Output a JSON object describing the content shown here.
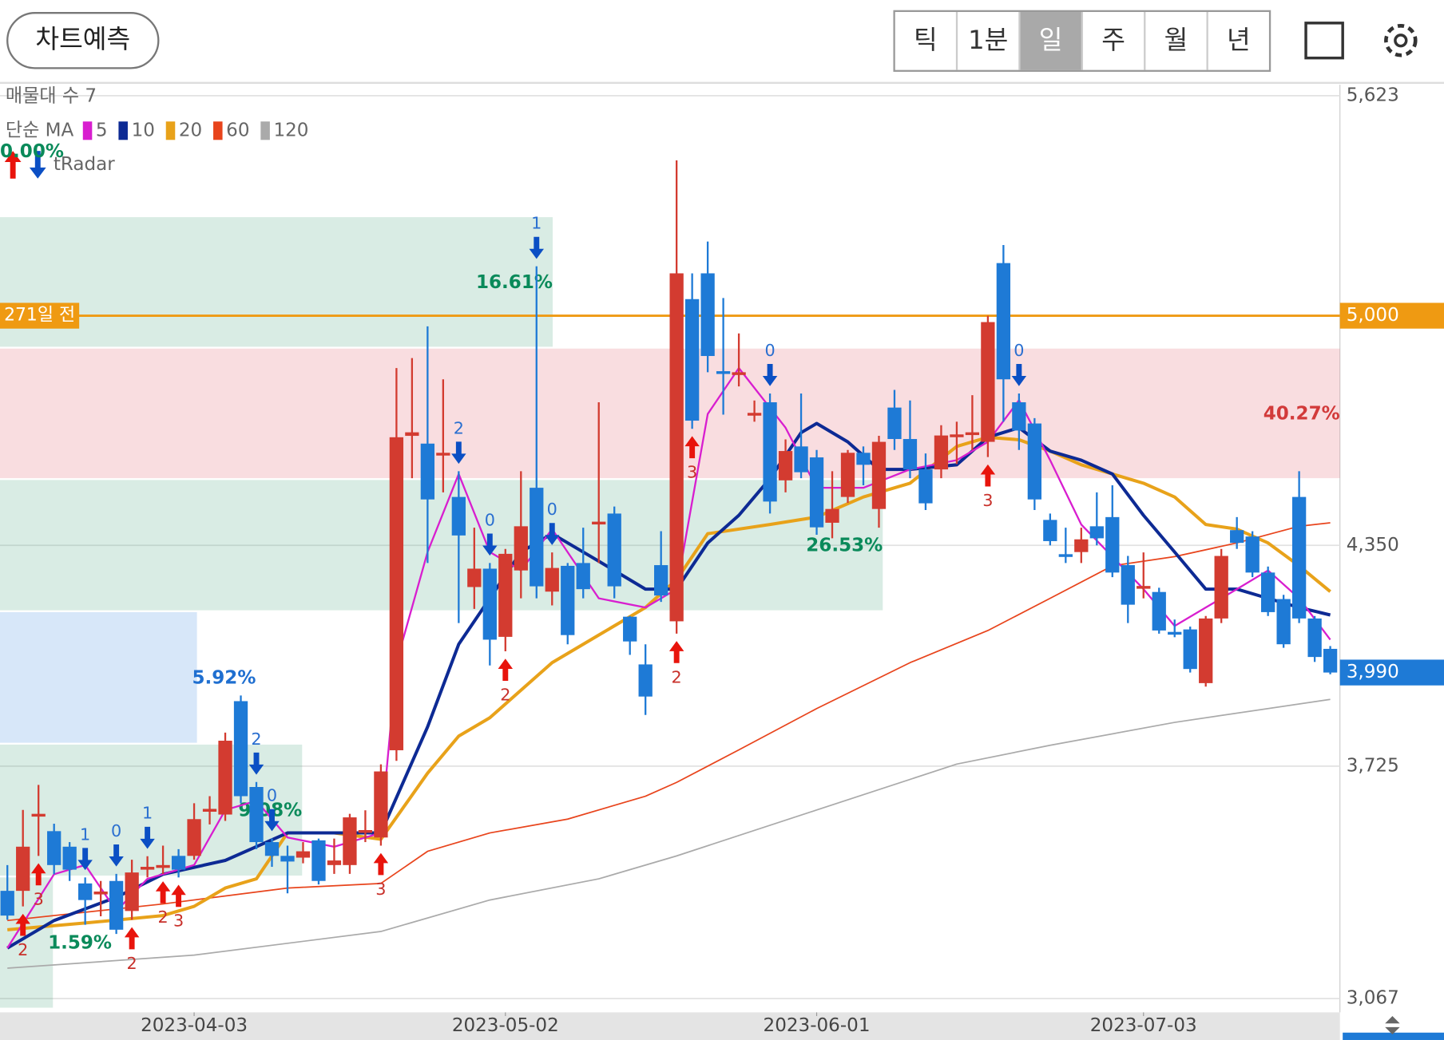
{
  "header": {
    "button": "차트예측",
    "periods": [
      "틱",
      "1분",
      "일",
      "주",
      "월",
      "년"
    ],
    "selected": 2
  },
  "chart_data": {
    "type": "candlestick",
    "profile_title": "매물대 수 7",
    "ma_title": "단순 MA",
    "indicator": {
      "name": "tRadar",
      "value": 0,
      "label": "0.00%"
    },
    "up_color": "#d33b30",
    "down_color": "#1e7ad6",
    "ylim": [
      3028,
      5654
    ],
    "yticks": [
      {
        "value": 5623,
        "label": "5,623"
      },
      {
        "value": 4350,
        "label": "4,350"
      },
      {
        "value": 3725,
        "label": "3,725"
      },
      {
        "value": 3067,
        "label": "3,067"
      }
    ],
    "grid": true,
    "categories": [
      null,
      null,
      null,
      null,
      null,
      null,
      null,
      null,
      null,
      null,
      null,
      null,
      "2023-04-03",
      null,
      null,
      null,
      null,
      null,
      null,
      null,
      null,
      null,
      null,
      null,
      null,
      null,
      null,
      null,
      null,
      null,
      null,
      null,
      "2023-05-02",
      null,
      null,
      null,
      null,
      null,
      null,
      null,
      null,
      null,
      null,
      null,
      null,
      null,
      null,
      null,
      null,
      null,
      null,
      null,
      "2023-06-01",
      null,
      null,
      null,
      null,
      null,
      null,
      null,
      null,
      null,
      null,
      null,
      null,
      null,
      null,
      null,
      null,
      null,
      null,
      null,
      null,
      "2023-07-03",
      null,
      null,
      null,
      null,
      null,
      null,
      null,
      null,
      null,
      null,
      null,
      null
    ],
    "candles": [
      [
        3372,
        3445,
        3290,
        3302
      ],
      [
        3372,
        3601,
        3328,
        3497
      ],
      [
        3585,
        3672,
        3471,
        3590
      ],
      [
        3541,
        3562,
        3419,
        3445
      ],
      [
        3497,
        3510,
        3400,
        3432
      ],
      [
        3393,
        3410,
        3276,
        3346
      ],
      [
        3362,
        3400,
        3300,
        3370
      ],
      [
        3400,
        3420,
        3250,
        3262
      ],
      [
        3315,
        3460,
        3290,
        3424
      ],
      [
        3432,
        3470,
        3410,
        3440
      ],
      [
        3437,
        3500,
        3420,
        3445
      ],
      [
        3471,
        3490,
        3410,
        3432
      ],
      [
        3471,
        3620,
        3460,
        3575
      ],
      [
        3596,
        3640,
        3560,
        3604
      ],
      [
        3588,
        3820,
        3570,
        3797
      ],
      [
        3909,
        3925,
        3620,
        3640
      ],
      [
        3666,
        3680,
        3490,
        3510
      ],
      [
        3510,
        3520,
        3440,
        3471
      ],
      [
        3471,
        3500,
        3365,
        3455
      ],
      [
        3466,
        3510,
        3450,
        3484
      ],
      [
        3515,
        3520,
        3390,
        3400
      ],
      [
        3445,
        3520,
        3420,
        3458
      ],
      [
        3445,
        3590,
        3420,
        3580
      ],
      [
        3538,
        3600,
        3510,
        3544
      ],
      [
        3523,
        3730,
        3500,
        3710
      ],
      [
        3770,
        4852,
        3740,
        4656
      ],
      [
        4660,
        4880,
        4540,
        4670
      ],
      [
        4638,
        4970,
        4300,
        4480
      ],
      [
        4610,
        4820,
        4500,
        4612
      ],
      [
        4487,
        4560,
        4130,
        4378
      ],
      [
        4232,
        4400,
        4170,
        4284
      ],
      [
        4284,
        4300,
        4010,
        4083
      ],
      [
        4091,
        4340,
        4050,
        4326
      ],
      [
        4279,
        4560,
        4200,
        4404
      ],
      [
        4513,
        5140,
        4200,
        4234
      ],
      [
        4219,
        4330,
        4180,
        4286
      ],
      [
        4292,
        4300,
        4070,
        4096
      ],
      [
        4300,
        4400,
        4200,
        4226
      ],
      [
        4411,
        4755,
        4300,
        4417
      ],
      [
        4440,
        4460,
        4200,
        4234
      ],
      [
        4148,
        4150,
        4040,
        4078
      ],
      [
        4013,
        4070,
        3870,
        3922
      ],
      [
        4294,
        4390,
        4190,
        4208
      ],
      [
        4135,
        5440,
        4100,
        5120
      ],
      [
        5047,
        5120,
        4680,
        4703
      ],
      [
        5120,
        5210,
        4840,
        4886
      ],
      [
        4843,
        5050,
        4720,
        4838
      ],
      [
        4835,
        4950,
        4800,
        4840
      ],
      [
        4720,
        4760,
        4700,
        4725
      ],
      [
        4755,
        4780,
        4440,
        4474
      ],
      [
        4534,
        4650,
        4500,
        4617
      ],
      [
        4630,
        4780,
        4540,
        4557
      ],
      [
        4599,
        4620,
        4380,
        4401
      ],
      [
        4414,
        4560,
        4370,
        4453
      ],
      [
        4487,
        4620,
        4470,
        4612
      ],
      [
        4612,
        4630,
        4520,
        4578
      ],
      [
        4453,
        4660,
        4400,
        4643
      ],
      [
        4740,
        4790,
        4620,
        4651
      ],
      [
        4651,
        4760,
        4540,
        4565
      ],
      [
        4565,
        4610,
        4450,
        4469
      ],
      [
        4565,
        4690,
        4540,
        4661
      ],
      [
        4660,
        4700,
        4580,
        4664
      ],
      [
        4665,
        4775,
        4620,
        4670
      ],
      [
        4643,
        5000,
        4600,
        4982
      ],
      [
        5149,
        5200,
        4700,
        4820
      ],
      [
        4755,
        4780,
        4620,
        4675
      ],
      [
        4695,
        4710,
        4450,
        4480
      ],
      [
        4422,
        4440,
        4350,
        4362
      ],
      [
        4325,
        4400,
        4300,
        4320
      ],
      [
        4331,
        4400,
        4300,
        4367
      ],
      [
        4404,
        4500,
        4350,
        4370
      ],
      [
        4430,
        4520,
        4260,
        4273
      ],
      [
        4294,
        4320,
        4130,
        4182
      ],
      [
        4230,
        4330,
        4200,
        4235
      ],
      [
        4218,
        4230,
        4100,
        4109
      ],
      [
        4105,
        4140,
        4090,
        4102
      ],
      [
        4112,
        4120,
        3990,
        4000
      ],
      [
        3960,
        4150,
        3950,
        4143
      ],
      [
        4143,
        4340,
        4130,
        4320
      ],
      [
        4393,
        4430,
        4340,
        4357
      ],
      [
        4375,
        4390,
        4260,
        4273
      ],
      [
        4273,
        4290,
        4150,
        4161
      ],
      [
        4198,
        4210,
        4060,
        4070
      ],
      [
        4487,
        4560,
        4130,
        4143
      ],
      [
        4143,
        4150,
        4020,
        4034
      ],
      [
        4057,
        4065,
        3985,
        3990
      ]
    ],
    "series": [
      {
        "name": "5",
        "color": "#d81ecf",
        "x": [
          0,
          3,
          5,
          7,
          9,
          12,
          14,
          16,
          18,
          21,
          24,
          25,
          27,
          29,
          31,
          33,
          35,
          38,
          41,
          43,
          45,
          47,
          50,
          52,
          55,
          58,
          61,
          63,
          65,
          67,
          69,
          71,
          73,
          75,
          77,
          79,
          81,
          83,
          85
        ],
        "values": [
          3210,
          3419,
          3445,
          3315,
          3406,
          3445,
          3601,
          3627,
          3523,
          3497,
          3536,
          4018,
          4331,
          4552,
          4331,
          4279,
          4396,
          4200,
          4174,
          4226,
          4722,
          4852,
          4683,
          4513,
          4513,
          4565,
          4591,
          4643,
          4761,
          4591,
          4409,
          4318,
          4226,
          4122,
          4174,
          4226,
          4279,
          4200,
          4083
        ]
      },
      {
        "name": "10",
        "color": "#0d2a94",
        "x": [
          0,
          3,
          7,
          10,
          14,
          18,
          22,
          24,
          27,
          29,
          31,
          33,
          35,
          38,
          41,
          43,
          45,
          47,
          49,
          51,
          52,
          54,
          56,
          58,
          61,
          63,
          65,
          67,
          69,
          71,
          73,
          75,
          77,
          79,
          81,
          83,
          85
        ],
        "values": [
          3210,
          3288,
          3354,
          3419,
          3458,
          3536,
          3536,
          3536,
          3836,
          4070,
          4200,
          4331,
          4383,
          4305,
          4226,
          4226,
          4357,
          4435,
          4539,
          4669,
          4695,
          4643,
          4565,
          4565,
          4578,
          4656,
          4683,
          4617,
          4591,
          4552,
          4435,
          4331,
          4226,
          4226,
          4200,
          4174,
          4153
        ]
      },
      {
        "name": "20",
        "color": "#e8a21a",
        "x": [
          0,
          5,
          10,
          12,
          14,
          16,
          18,
          21,
          24,
          27,
          29,
          31,
          33,
          35,
          38,
          41,
          43,
          45,
          49,
          52,
          55,
          58,
          61,
          63,
          65,
          67,
          69,
          71,
          73,
          75,
          77,
          79,
          81,
          83,
          85
        ],
        "values": [
          3262,
          3281,
          3302,
          3328,
          3380,
          3406,
          3536,
          3536,
          3518,
          3705,
          3810,
          3862,
          3940,
          4018,
          4096,
          4174,
          4253,
          4383,
          4409,
          4430,
          4487,
          4526,
          4630,
          4656,
          4649,
          4617,
          4578,
          4552,
          4526,
          4487,
          4409,
          4396,
          4357,
          4292,
          4219
        ]
      },
      {
        "name": "60",
        "color": "#e8441c",
        "x": [
          0,
          10,
          18,
          24,
          27,
          31,
          36,
          41,
          43,
          47,
          52,
          58,
          63,
          67,
          71,
          75,
          79,
          83,
          85
        ],
        "values": [
          3288,
          3335,
          3380,
          3393,
          3484,
          3536,
          3575,
          3640,
          3679,
          3771,
          3888,
          4018,
          4109,
          4200,
          4292,
          4318,
          4357,
          4404,
          4414
        ]
      },
      {
        "name": "120",
        "color": "#aaaaaa",
        "x": [
          0,
          12,
          24,
          31,
          38,
          43,
          52,
          61,
          67,
          75,
          85
        ],
        "values": [
          3153,
          3190,
          3257,
          3346,
          3406,
          3471,
          3601,
          3731,
          3784,
          3849,
          3914
        ]
      }
    ],
    "bands": [
      {
        "low": 4907,
        "high": 5279,
        "share": 16.61,
        "share_label": "16.61%",
        "color": "#0a8a5a"
      },
      {
        "low": 4535,
        "high": 4907,
        "share": 40.27,
        "share_label": "40.27%",
        "color": "#d23a3a"
      },
      {
        "low": 4161,
        "high": 4535,
        "share": 26.53,
        "share_label": "26.53%",
        "color": "#0a8a5a"
      },
      {
        "low": 3786,
        "high": 4161,
        "share": 5.92,
        "share_label": "5.92%",
        "color": "#1f6fd0"
      },
      {
        "low": 3410,
        "high": 3786,
        "share": 9.08,
        "share_label": "9.08%",
        "color": "#0a8a5a"
      },
      {
        "low": 3036,
        "high": 3410,
        "share": 1.59,
        "share_label": "1.59%",
        "color": "#0a8a5a"
      }
    ],
    "reference": {
      "label": "271일 전",
      "value": 5000,
      "value_label": "5,000",
      "color": "#ef9a12"
    },
    "last_price": {
      "value": 3990,
      "label": "3,990"
    },
    "signals": [
      {
        "index": 1,
        "count": 2,
        "dir": "up"
      },
      {
        "index": 2,
        "count": 3,
        "dir": "up"
      },
      {
        "index": 8,
        "count": 2,
        "dir": "up"
      },
      {
        "index": 10,
        "count": 2,
        "dir": "up"
      },
      {
        "index": 11,
        "count": 3,
        "dir": "up"
      },
      {
        "index": 24,
        "count": 3,
        "dir": "up"
      },
      {
        "index": 32,
        "count": 2,
        "dir": "up"
      },
      {
        "index": 43,
        "count": 2,
        "dir": "up"
      },
      {
        "index": 44,
        "count": 3,
        "dir": "up"
      },
      {
        "index": 63,
        "count": 3,
        "dir": "up"
      },
      {
        "index": 5,
        "count": 1,
        "dir": "down"
      },
      {
        "index": 7,
        "count": 0,
        "dir": "down"
      },
      {
        "index": 9,
        "count": 1,
        "dir": "down"
      },
      {
        "index": 16,
        "count": 2,
        "dir": "down"
      },
      {
        "index": 17,
        "count": 0,
        "dir": "down"
      },
      {
        "index": 29,
        "count": 2,
        "dir": "down"
      },
      {
        "index": 31,
        "count": 0,
        "dir": "down"
      },
      {
        "index": 34,
        "count": 1,
        "dir": "down"
      },
      {
        "index": 35,
        "count": 0,
        "dir": "down"
      },
      {
        "index": 49,
        "count": 0,
        "dir": "down"
      },
      {
        "index": 65,
        "count": 0,
        "dir": "down"
      }
    ]
  }
}
